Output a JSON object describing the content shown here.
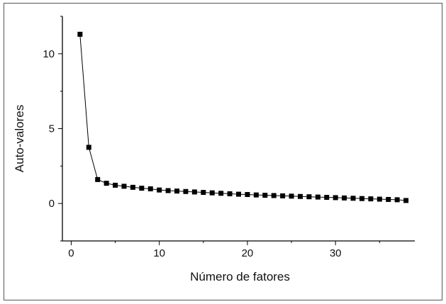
{
  "chart_data": {
    "type": "line",
    "title": "",
    "xlabel": "Número de fatores",
    "ylabel": "Auto-valores",
    "xlim": [
      -1,
      39
    ],
    "ylim": [
      -2.5,
      12.5
    ],
    "x_ticks": [
      0,
      10,
      20,
      30
    ],
    "y_ticks": [
      0,
      5,
      10
    ],
    "grid": false,
    "legend": "none",
    "marker": "square",
    "line_color": "#000000",
    "series": [
      {
        "x": [
          1,
          2,
          3,
          4,
          5,
          6,
          7,
          8,
          9,
          10,
          11,
          12,
          13,
          14,
          15,
          16,
          17,
          18,
          19,
          20,
          21,
          22,
          23,
          24,
          25,
          26,
          27,
          28,
          29,
          30,
          31,
          32,
          33,
          34,
          35,
          36,
          37,
          38
        ],
        "values": [
          11.3,
          3.75,
          1.6,
          1.35,
          1.22,
          1.15,
          1.08,
          1.02,
          0.98,
          0.9,
          0.86,
          0.83,
          0.8,
          0.77,
          0.74,
          0.71,
          0.68,
          0.65,
          0.62,
          0.6,
          0.57,
          0.55,
          0.53,
          0.51,
          0.49,
          0.47,
          0.45,
          0.43,
          0.41,
          0.39,
          0.37,
          0.35,
          0.33,
          0.31,
          0.29,
          0.27,
          0.25,
          0.2
        ]
      }
    ]
  }
}
